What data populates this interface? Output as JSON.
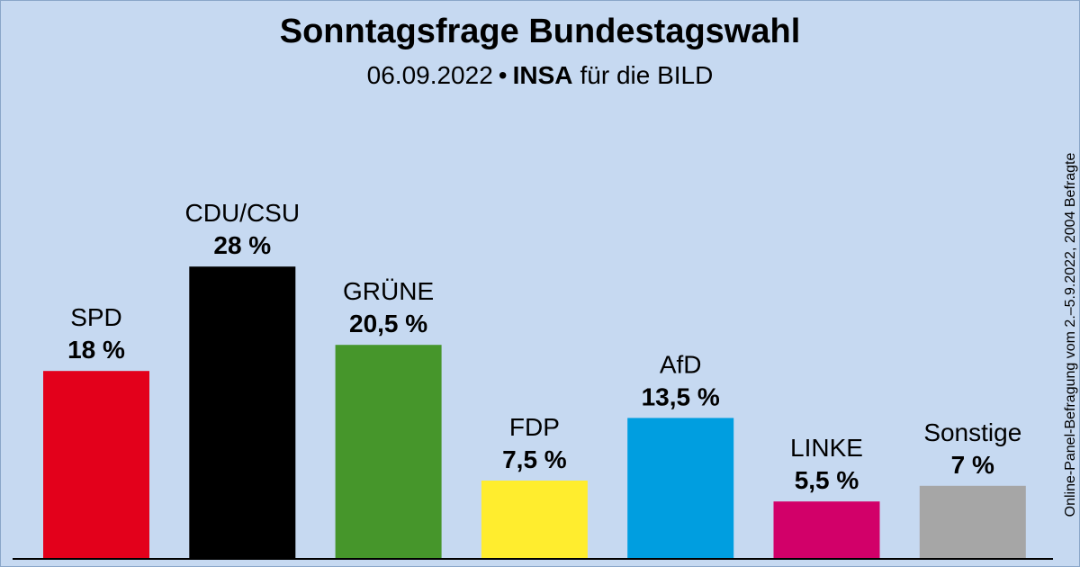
{
  "header": {
    "title": "Sonntagsfrage Bundestagswahl",
    "date": "06.09.2022",
    "separator": "•",
    "institute": "INSA",
    "client": "für die BILD"
  },
  "side_note": "Online-Panel-Befragung vom 2.–5.9.2022, 2004 Befragte",
  "chart_data": {
    "type": "bar",
    "title": "Sonntagsfrage Bundestagswahl",
    "xlabel": "",
    "ylabel": "",
    "categories": [
      "SPD",
      "CDU/CSU",
      "GRÜNE",
      "FDP",
      "AfD",
      "LINKE",
      "Sonstige"
    ],
    "values": [
      18,
      28,
      20.5,
      7.5,
      13.5,
      5.5,
      7
    ],
    "value_labels": [
      "18 %",
      "28 %",
      "20,5 %",
      "7,5 %",
      "13,5 %",
      "5,5 %",
      "7 %"
    ],
    "colors": [
      "#e3001b",
      "#000000",
      "#46962b",
      "#ffed2e",
      "#009ee0",
      "#d20069",
      "#a6a6a6"
    ],
    "grid": false,
    "legend": "none"
  }
}
